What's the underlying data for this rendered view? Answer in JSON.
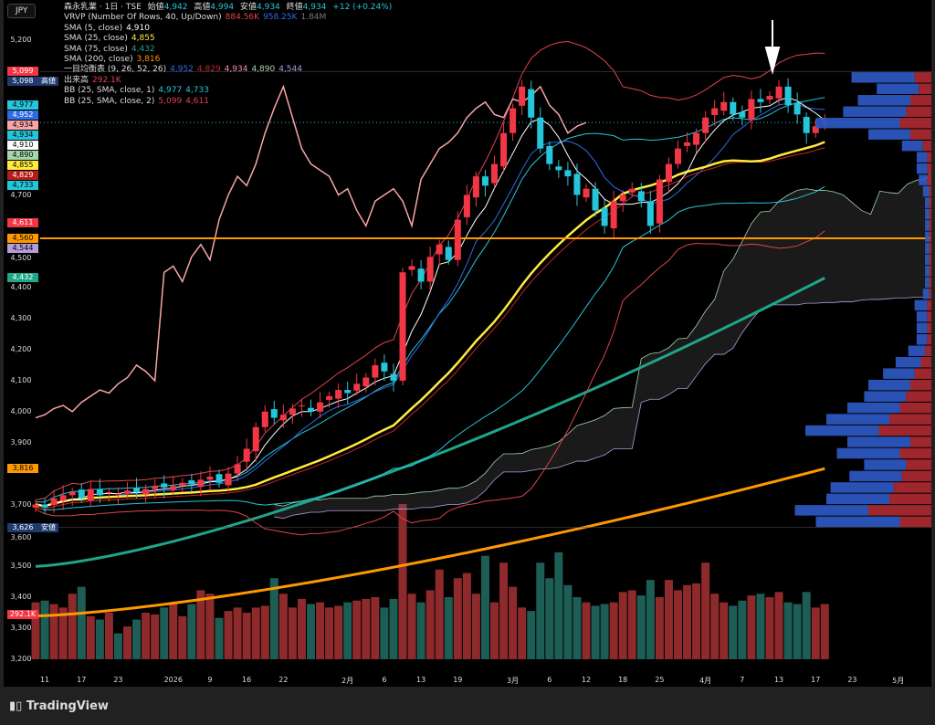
{
  "currency": "JPY",
  "header": {
    "symbol": "森永乳業 · 1日 · TSE",
    "open_label": "始値",
    "open": "4,942",
    "high_label": "高値",
    "high": "4,994",
    "low_label": "安値",
    "low": "4,934",
    "close_label": "終値",
    "close": "4,934",
    "change": "+12 (+0.24%)"
  },
  "indicators": [
    {
      "label": "VRVP (Number Of Rows, 40, Up/Down)",
      "values": [
        {
          "v": "884.56K",
          "c": "#e0444e"
        },
        {
          "v": "958.25K",
          "c": "#2f6be6"
        },
        {
          "v": "1.84M",
          "c": "#777"
        }
      ]
    },
    {
      "label": "SMA (5, close)",
      "values": [
        {
          "v": "4,910",
          "c": "#ffffff"
        }
      ]
    },
    {
      "label": "SMA (25, close)",
      "values": [
        {
          "v": "4,855",
          "c": "#ffeb3b"
        }
      ]
    },
    {
      "label": "SMA (75, close)",
      "values": [
        {
          "v": "4,432",
          "c": "#1fa58a"
        }
      ]
    },
    {
      "label": "SMA (200, close)",
      "values": [
        {
          "v": "3,816",
          "c": "#ff9800"
        }
      ]
    },
    {
      "label": "一目均衡表 (9, 26, 52, 26)",
      "values": [
        {
          "v": "4,952",
          "c": "#2f6be6"
        },
        {
          "v": "4,829",
          "c": "#c62828"
        },
        {
          "v": "4,934",
          "c": "#f48fb1"
        },
        {
          "v": "4,890",
          "c": "#a5d6a7"
        },
        {
          "v": "4,544",
          "c": "#b39ddb"
        }
      ]
    },
    {
      "label": "出来高",
      "values": [
        {
          "v": "292.1K",
          "c": "#e0444e"
        }
      ]
    },
    {
      "label": "BB (25, SMA, close, 1)",
      "values": [
        {
          "v": "4,977",
          "c": "#26c6da"
        },
        {
          "v": "4,733",
          "c": "#26c6da"
        }
      ]
    },
    {
      "label": "BB (25, SMA, close, 2)",
      "values": [
        {
          "v": "5,099",
          "c": "#e0444e"
        },
        {
          "v": "4,611",
          "c": "#e0444e"
        }
      ]
    }
  ],
  "price_ticks": [
    "5,200",
    "4,700",
    "4,500",
    "4,400",
    "4,300",
    "4,200",
    "4,100",
    "4,000",
    "3,900",
    "3,700",
    "3,600",
    "3,500",
    "3,400",
    "3,300",
    "3,200"
  ],
  "price_tags": [
    {
      "t": "5,099",
      "p": 5099,
      "bg": "#f23645",
      "fg": "#fff"
    },
    {
      "t": "5,098",
      "p": 5098,
      "bg": "#1e3a6e",
      "fg": "#fff",
      "extra": "高値"
    },
    {
      "t": "4,977",
      "p": 4990,
      "bg": "#26c6da",
      "fg": "#000"
    },
    {
      "t": "4,952",
      "p": 4960,
      "bg": "#2f6be6",
      "fg": "#fff"
    },
    {
      "t": "4,934",
      "p": 4932,
      "bg": "#f8a5a5",
      "fg": "#000"
    },
    {
      "t": "4,934",
      "p": 4905,
      "bg": "#26c6da",
      "fg": "#000"
    },
    {
      "t": "4,910",
      "p": 4880,
      "bg": "#ffffff",
      "fg": "#000"
    },
    {
      "t": "4,890",
      "p": 4855,
      "bg": "#a5d6a7",
      "fg": "#000"
    },
    {
      "t": "4,855",
      "p": 4830,
      "bg": "#ffeb3b",
      "fg": "#000"
    },
    {
      "t": "4,829",
      "p": 4805,
      "bg": "#b71c1c",
      "fg": "#fff"
    },
    {
      "t": "4,733",
      "p": 4733,
      "bg": "#26c6da",
      "fg": "#000"
    },
    {
      "t": "4,611",
      "p": 4611,
      "bg": "#f23645",
      "fg": "#fff"
    },
    {
      "t": "4,560",
      "p": 4560,
      "bg": "#ff9800",
      "fg": "#000"
    },
    {
      "t": "4,544",
      "p": 4535,
      "bg": "#b39ddb",
      "fg": "#000"
    },
    {
      "t": "4,432",
      "p": 4432,
      "bg": "#1fa58a",
      "fg": "#fff"
    },
    {
      "t": "3,816",
      "p": 3816,
      "bg": "#ff9800",
      "fg": "#000"
    },
    {
      "t": "3,626",
      "p": 3626,
      "bg": "#1e3a6e",
      "fg": "#fff",
      "extra": "安値"
    },
    {
      "t": "292.1K",
      "p": 3345,
      "bg": "#f23645",
      "fg": "#fff"
    }
  ],
  "x_labels": [
    {
      "t": "11",
      "i": 1
    },
    {
      "t": "17",
      "i": 5
    },
    {
      "t": "23",
      "i": 9
    },
    {
      "t": "2026",
      "i": 15
    },
    {
      "t": "9",
      "i": 19
    },
    {
      "t": "16",
      "i": 23
    },
    {
      "t": "22",
      "i": 27
    },
    {
      "t": "2月",
      "i": 34
    },
    {
      "t": "6",
      "i": 38
    },
    {
      "t": "13",
      "i": 42
    },
    {
      "t": "19",
      "i": 46
    },
    {
      "t": "3月",
      "i": 52
    },
    {
      "t": "6",
      "i": 56
    },
    {
      "t": "12",
      "i": 60
    },
    {
      "t": "18",
      "i": 64
    },
    {
      "t": "25",
      "i": 68
    },
    {
      "t": "4月",
      "i": 73
    },
    {
      "t": "7",
      "i": 77
    },
    {
      "t": "13",
      "i": 81
    },
    {
      "t": "17",
      "i": 85
    },
    {
      "t": "23",
      "i": 89
    },
    {
      "t": "5月",
      "i": 94
    }
  ],
  "chart_data": {
    "type": "candlestick",
    "close": [
      3700,
      3690,
      3720,
      3730,
      3740,
      3720,
      3750,
      3730,
      3740,
      3735,
      3745,
      3740,
      3750,
      3760,
      3755,
      3760,
      3770,
      3765,
      3780,
      3790,
      3770,
      3800,
      3830,
      3880,
      3950,
      4000,
      3980,
      3990,
      4010,
      4020,
      4000,
      4030,
      4050,
      4070,
      4060,
      4090,
      4110,
      4150,
      4130,
      4100,
      4450,
      4470,
      4420,
      4500,
      4540,
      4490,
      4620,
      4700,
      4760,
      4730,
      4800,
      4900,
      4980,
      5050,
      4950,
      4850,
      4800,
      4780,
      4760,
      4700,
      4720,
      4650,
      4600,
      4680,
      4700,
      4720,
      4680,
      4600,
      4750,
      4800,
      4850,
      4870,
      4900,
      4950,
      4980,
      5000,
      4960,
      4950,
      5010,
      5000,
      5020,
      5050,
      4990,
      4960,
      4900,
      4922,
      4934
    ],
    "volume_k": [
      330,
      340,
      320,
      300,
      380,
      420,
      250,
      230,
      270,
      150,
      190,
      230,
      270,
      260,
      300,
      330,
      250,
      320,
      400,
      380,
      240,
      280,
      300,
      270,
      300,
      310,
      470,
      380,
      300,
      350,
      320,
      330,
      300,
      310,
      330,
      340,
      350,
      360,
      300,
      350,
      900,
      380,
      330,
      400,
      520,
      360,
      470,
      500,
      380,
      600,
      330,
      560,
      420,
      300,
      280,
      560,
      470,
      620,
      430,
      360,
      330,
      310,
      320,
      330,
      390,
      400,
      370,
      460,
      360,
      460,
      400,
      430,
      440,
      560,
      380,
      330,
      310,
      340,
      370,
      380,
      360,
      390,
      330,
      320,
      390,
      300,
      320
    ],
    "ylim": [
      3200,
      5200
    ],
    "hline": 4560,
    "sma75_endpoints": [
      3500,
      4432
    ],
    "sma200_endpoints": [
      3340,
      3816
    ],
    "vrvp_up": [
      30,
      20,
      25,
      30,
      40,
      20,
      10,
      5,
      5,
      4,
      3,
      2,
      2,
      2,
      2,
      2,
      2,
      2,
      2,
      3,
      6,
      5,
      5,
      5,
      8,
      12,
      15,
      20,
      20,
      25,
      30,
      35,
      30,
      30,
      20,
      25,
      30,
      30,
      35,
      40
    ],
    "vrvp_down": [
      8,
      6,
      10,
      12,
      15,
      10,
      4,
      2,
      2,
      2,
      1,
      1,
      1,
      1,
      1,
      1,
      1,
      1,
      1,
      1,
      2,
      2,
      2,
      2,
      3,
      5,
      8,
      10,
      12,
      15,
      20,
      25,
      10,
      15,
      12,
      14,
      18,
      20,
      30,
      15
    ]
  },
  "brand": "TradingView"
}
